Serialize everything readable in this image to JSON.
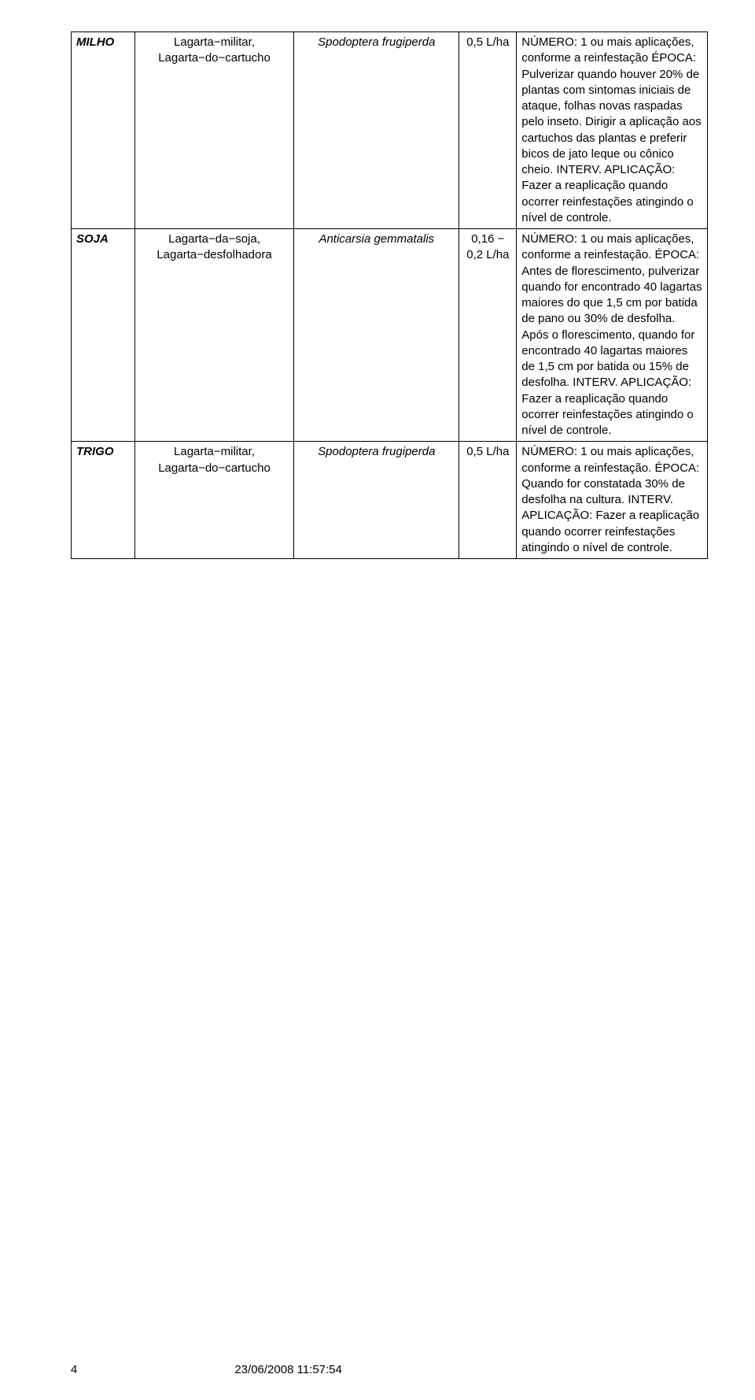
{
  "rows": [
    {
      "crop": "MILHO",
      "pest": "Lagarta−militar, Lagarta−do−cartucho",
      "sci": "Spodoptera frugiperda",
      "dose": "0,5 L/ha",
      "notes": "NÚMERO: 1 ou mais aplicações, conforme a reinfestação ÉPOCA: Pulverizar quando houver 20% de plantas com sintomas iniciais de ataque, folhas novas raspadas pelo inseto. Dirigir a aplicação aos cartuchos das plantas e preferir bicos de jato leque ou cônico cheio. INTERV. APLICAÇÃO: Fazer a reaplicação quando ocorrer reinfestações atingindo o nível de controle."
    },
    {
      "crop": "SOJA",
      "pest": "Lagarta−da−soja, Lagarta−desfolhadora",
      "sci": "Anticarsia gemmatalis",
      "dose": "0,16 − 0,2 L/ha",
      "notes": "NÚMERO: 1 ou mais aplicações, conforme a reinfestação. ÉPOCA: Antes de florescimento, pulverizar quando for encontrado 40 lagartas maiores do que 1,5 cm por batida de pano ou 30% de desfolha. Após o florescimento, quando for encontrado 40 lagartas maiores de 1,5 cm por batida ou 15% de desfolha. INTERV. APLICAÇÃO: Fazer a reaplicação quando ocorrer reinfestações atingindo o nível de controle."
    },
    {
      "crop": "TRIGO",
      "pest": "Lagarta−militar, Lagarta−do−cartucho",
      "sci": "Spodoptera frugiperda",
      "dose": "0,5 L/ha",
      "notes": "NÚMERO: 1 ou mais aplicações, conforme a reinfestação. ÉPOCA: Quando for constatada 30% de desfolha na cultura. INTERV. APLICAÇÃO: Fazer a reaplicação quando ocorrer reinfestações atingindo o nível de controle."
    }
  ],
  "footer": {
    "page": "4",
    "datetime": "23/06/2008 11:57:54"
  }
}
